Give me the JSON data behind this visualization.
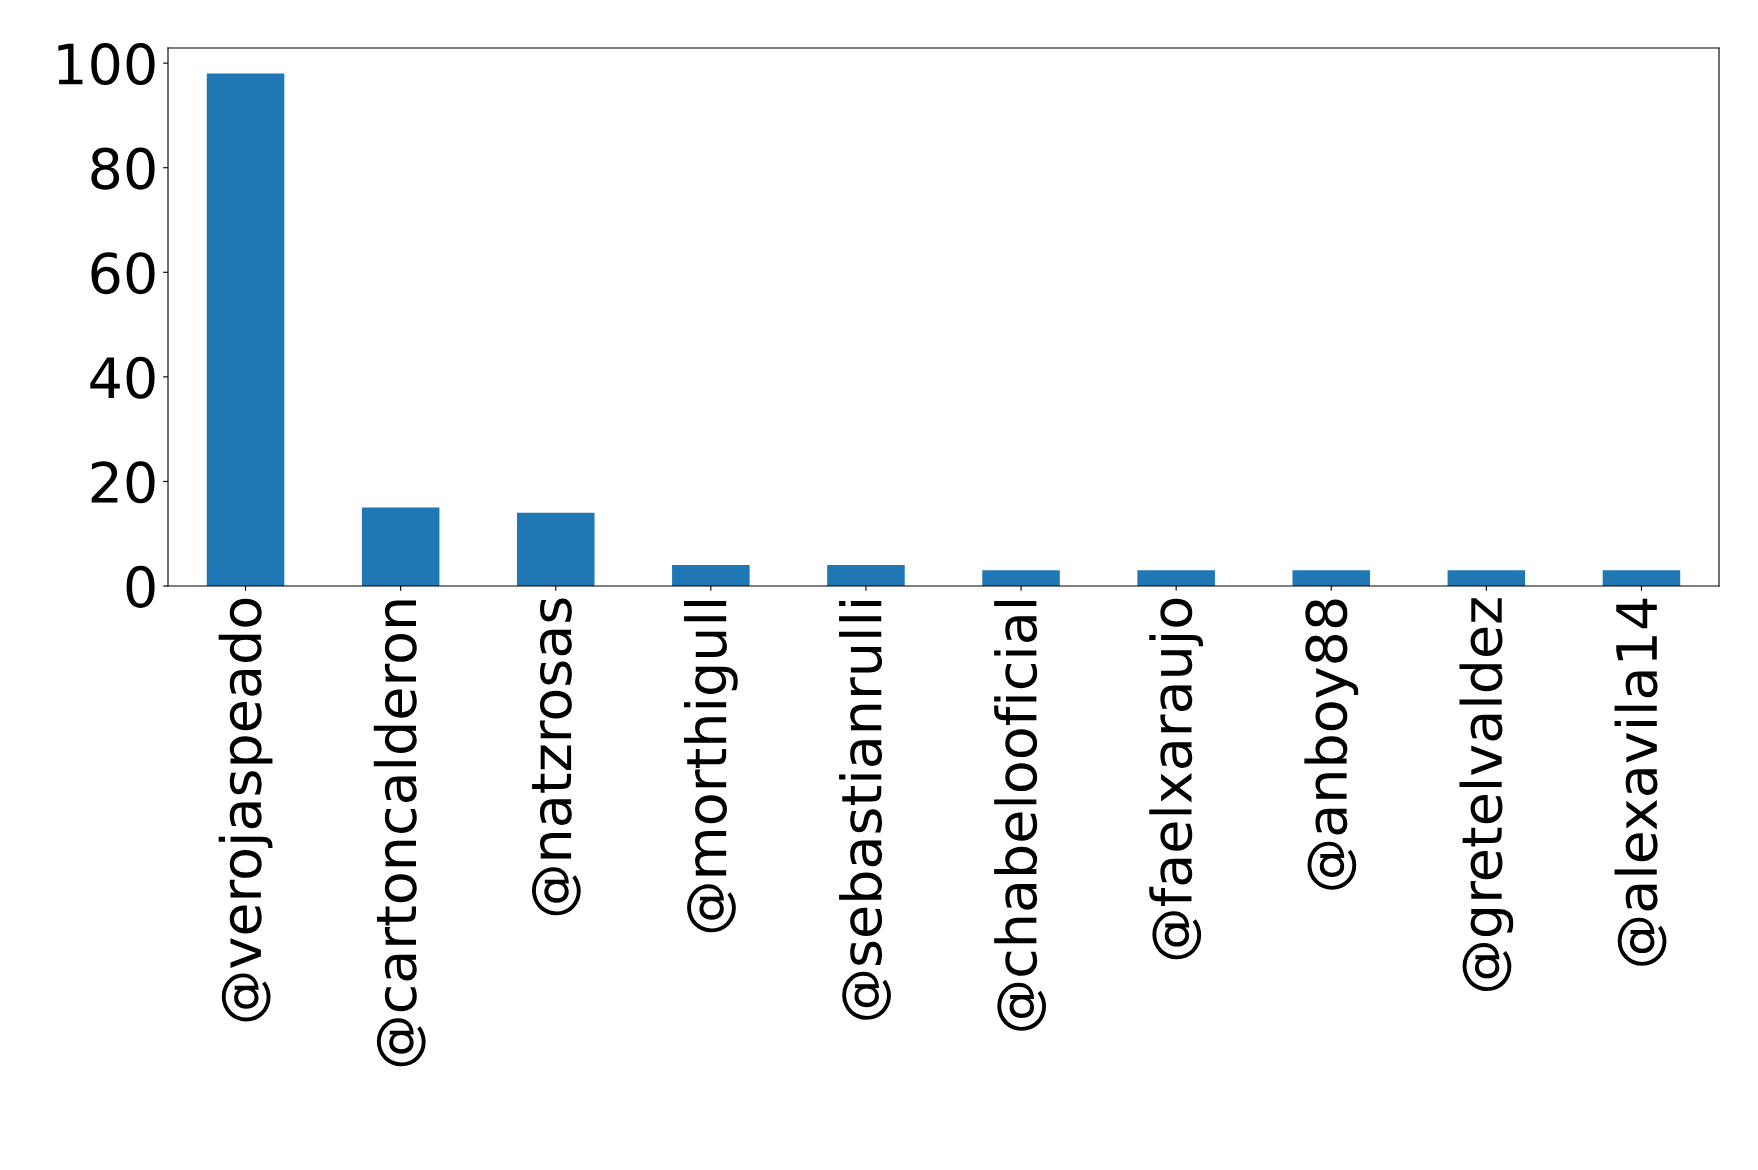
{
  "chart_data": {
    "type": "bar",
    "categories": [
      "@verojaspeado",
      "@cartoncalderon",
      "@natzrosas",
      "@morthigull",
      "@sebastianrulli",
      "@chabelooficial",
      "@faelxaraujo",
      "@anboy88",
      "@gretelvaldez",
      "@alexavila14"
    ],
    "values": [
      98,
      15,
      14,
      4,
      4,
      3,
      3,
      3,
      3,
      3
    ],
    "color": "#1f77b4",
    "ylim": [
      0,
      102.9
    ],
    "yticks": [
      0,
      20,
      40,
      60,
      80,
      100
    ],
    "grid": false,
    "legend": false
  }
}
